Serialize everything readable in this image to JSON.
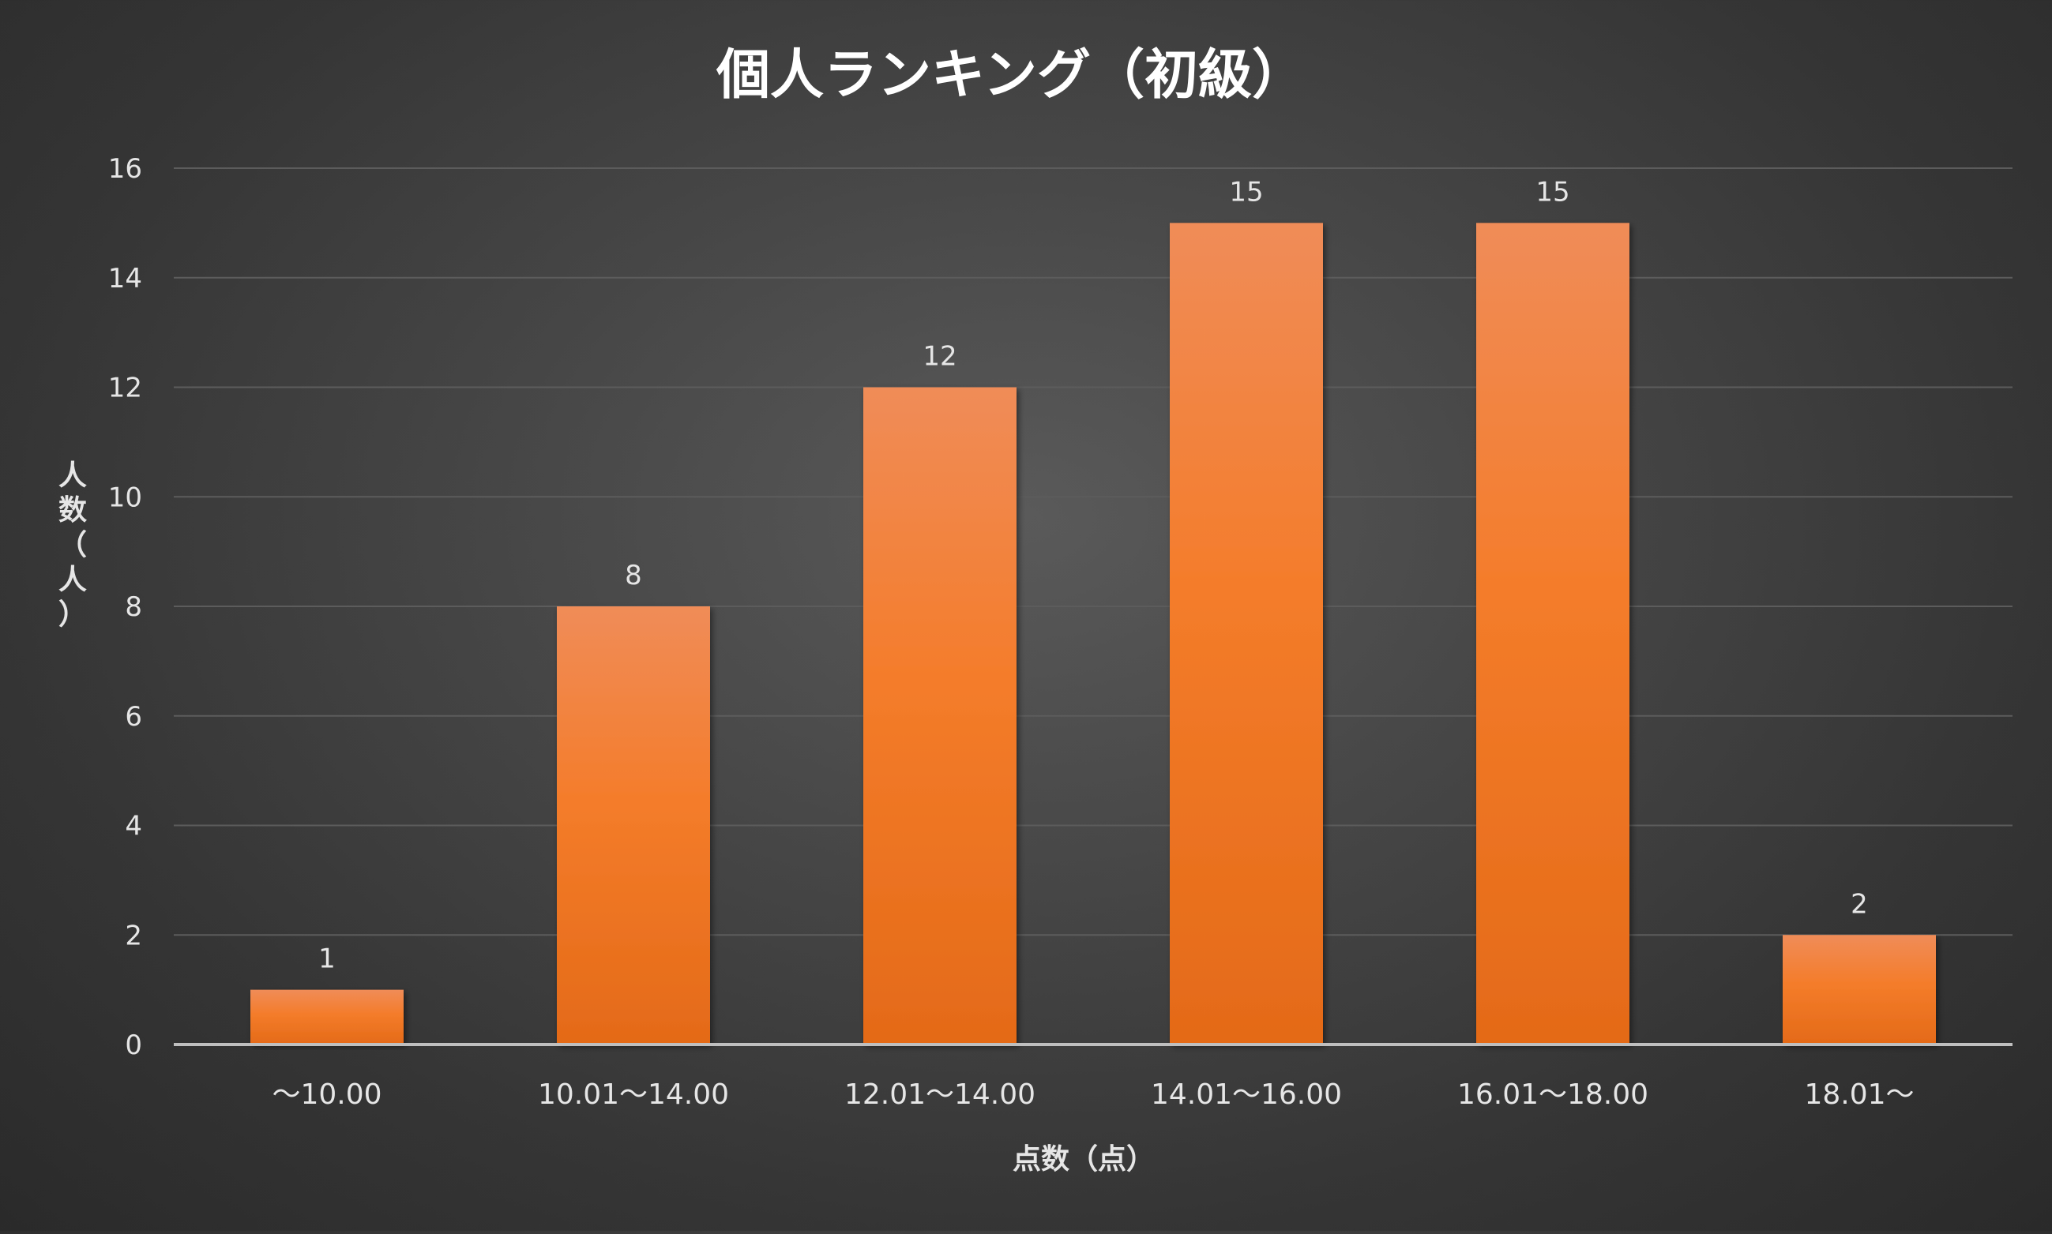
{
  "chart_data": {
    "type": "bar",
    "title": "個人ランキング（初級）",
    "xlabel": "点数（点）",
    "ylabel": "人数（人）",
    "categories": [
      "〜10.00",
      "10.01〜14.00",
      "12.01〜14.00",
      "14.01〜16.00",
      "16.01〜18.00",
      "18.01〜"
    ],
    "values": [
      1,
      8,
      12,
      15,
      15,
      2
    ],
    "ylim": [
      0,
      16
    ],
    "yticks": [
      0,
      2,
      4,
      6,
      8,
      10,
      12,
      14,
      16
    ],
    "grid": true,
    "data_labels": true,
    "legend": "none"
  },
  "colors": {
    "bar_top": "#f08c58",
    "bar_mid": "#f47c2a",
    "bar_bottom": "#e46a18",
    "text": "#e6e6e6",
    "title": "#ffffff",
    "grid": "#5c5c5c",
    "axis": "#bfbfbf"
  }
}
